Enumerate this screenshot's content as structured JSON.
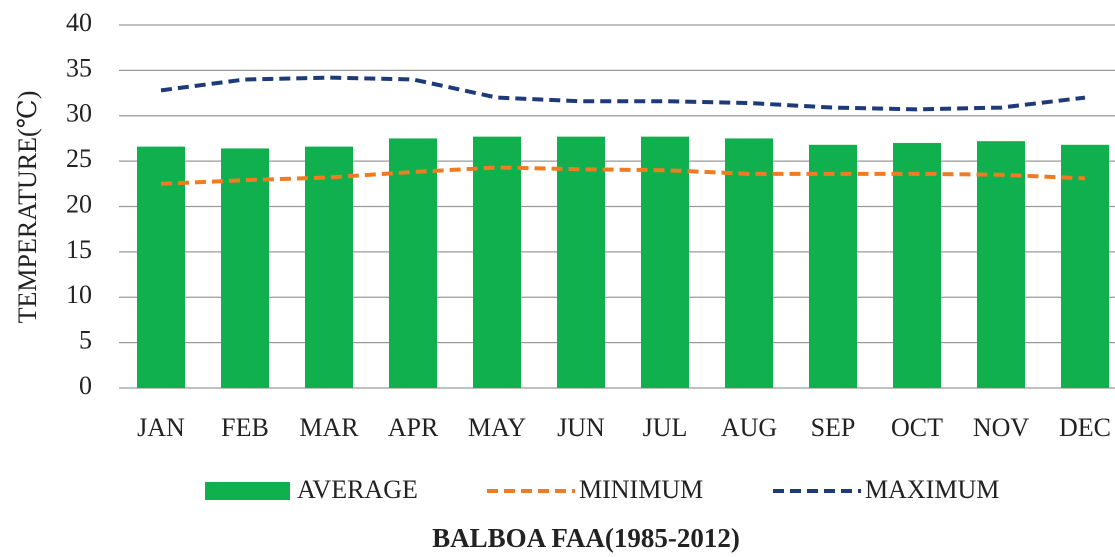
{
  "chart_data": {
    "type": "bar_line",
    "title": "BALBOA FAA(1985-2012)",
    "y_label": "TEMPERATURE(℃)",
    "categories": [
      "JAN",
      "FEB",
      "MAR",
      "APR",
      "MAY",
      "JUN",
      "JUL",
      "AUG",
      "SEP",
      "OCT",
      "NOV",
      "DEC"
    ],
    "series": [
      {
        "name": "AVERAGE",
        "color": "#11b04f",
        "kind": "bar",
        "values": [
          26.6,
          26.4,
          26.6,
          27.5,
          27.7,
          27.7,
          27.7,
          27.5,
          26.8,
          27.0,
          27.2,
          26.8
        ]
      },
      {
        "name": "MINIMUM",
        "color": "#f07b20",
        "kind": "line",
        "values": [
          22.5,
          22.9,
          23.2,
          23.8,
          24.3,
          24.1,
          24.0,
          23.6,
          23.6,
          23.6,
          23.5,
          23.1
        ]
      },
      {
        "name": "MAXIMUM",
        "color": "#1f3a78",
        "kind": "line",
        "values": [
          32.8,
          34.0,
          34.2,
          34.0,
          32.0,
          31.6,
          31.6,
          31.4,
          30.9,
          30.7,
          30.9,
          32.0
        ]
      }
    ],
    "ylim": [
      0,
      40
    ],
    "yticks": [
      0,
      5,
      10,
      15,
      20,
      25,
      30,
      35,
      40
    ],
    "grid": true
  }
}
